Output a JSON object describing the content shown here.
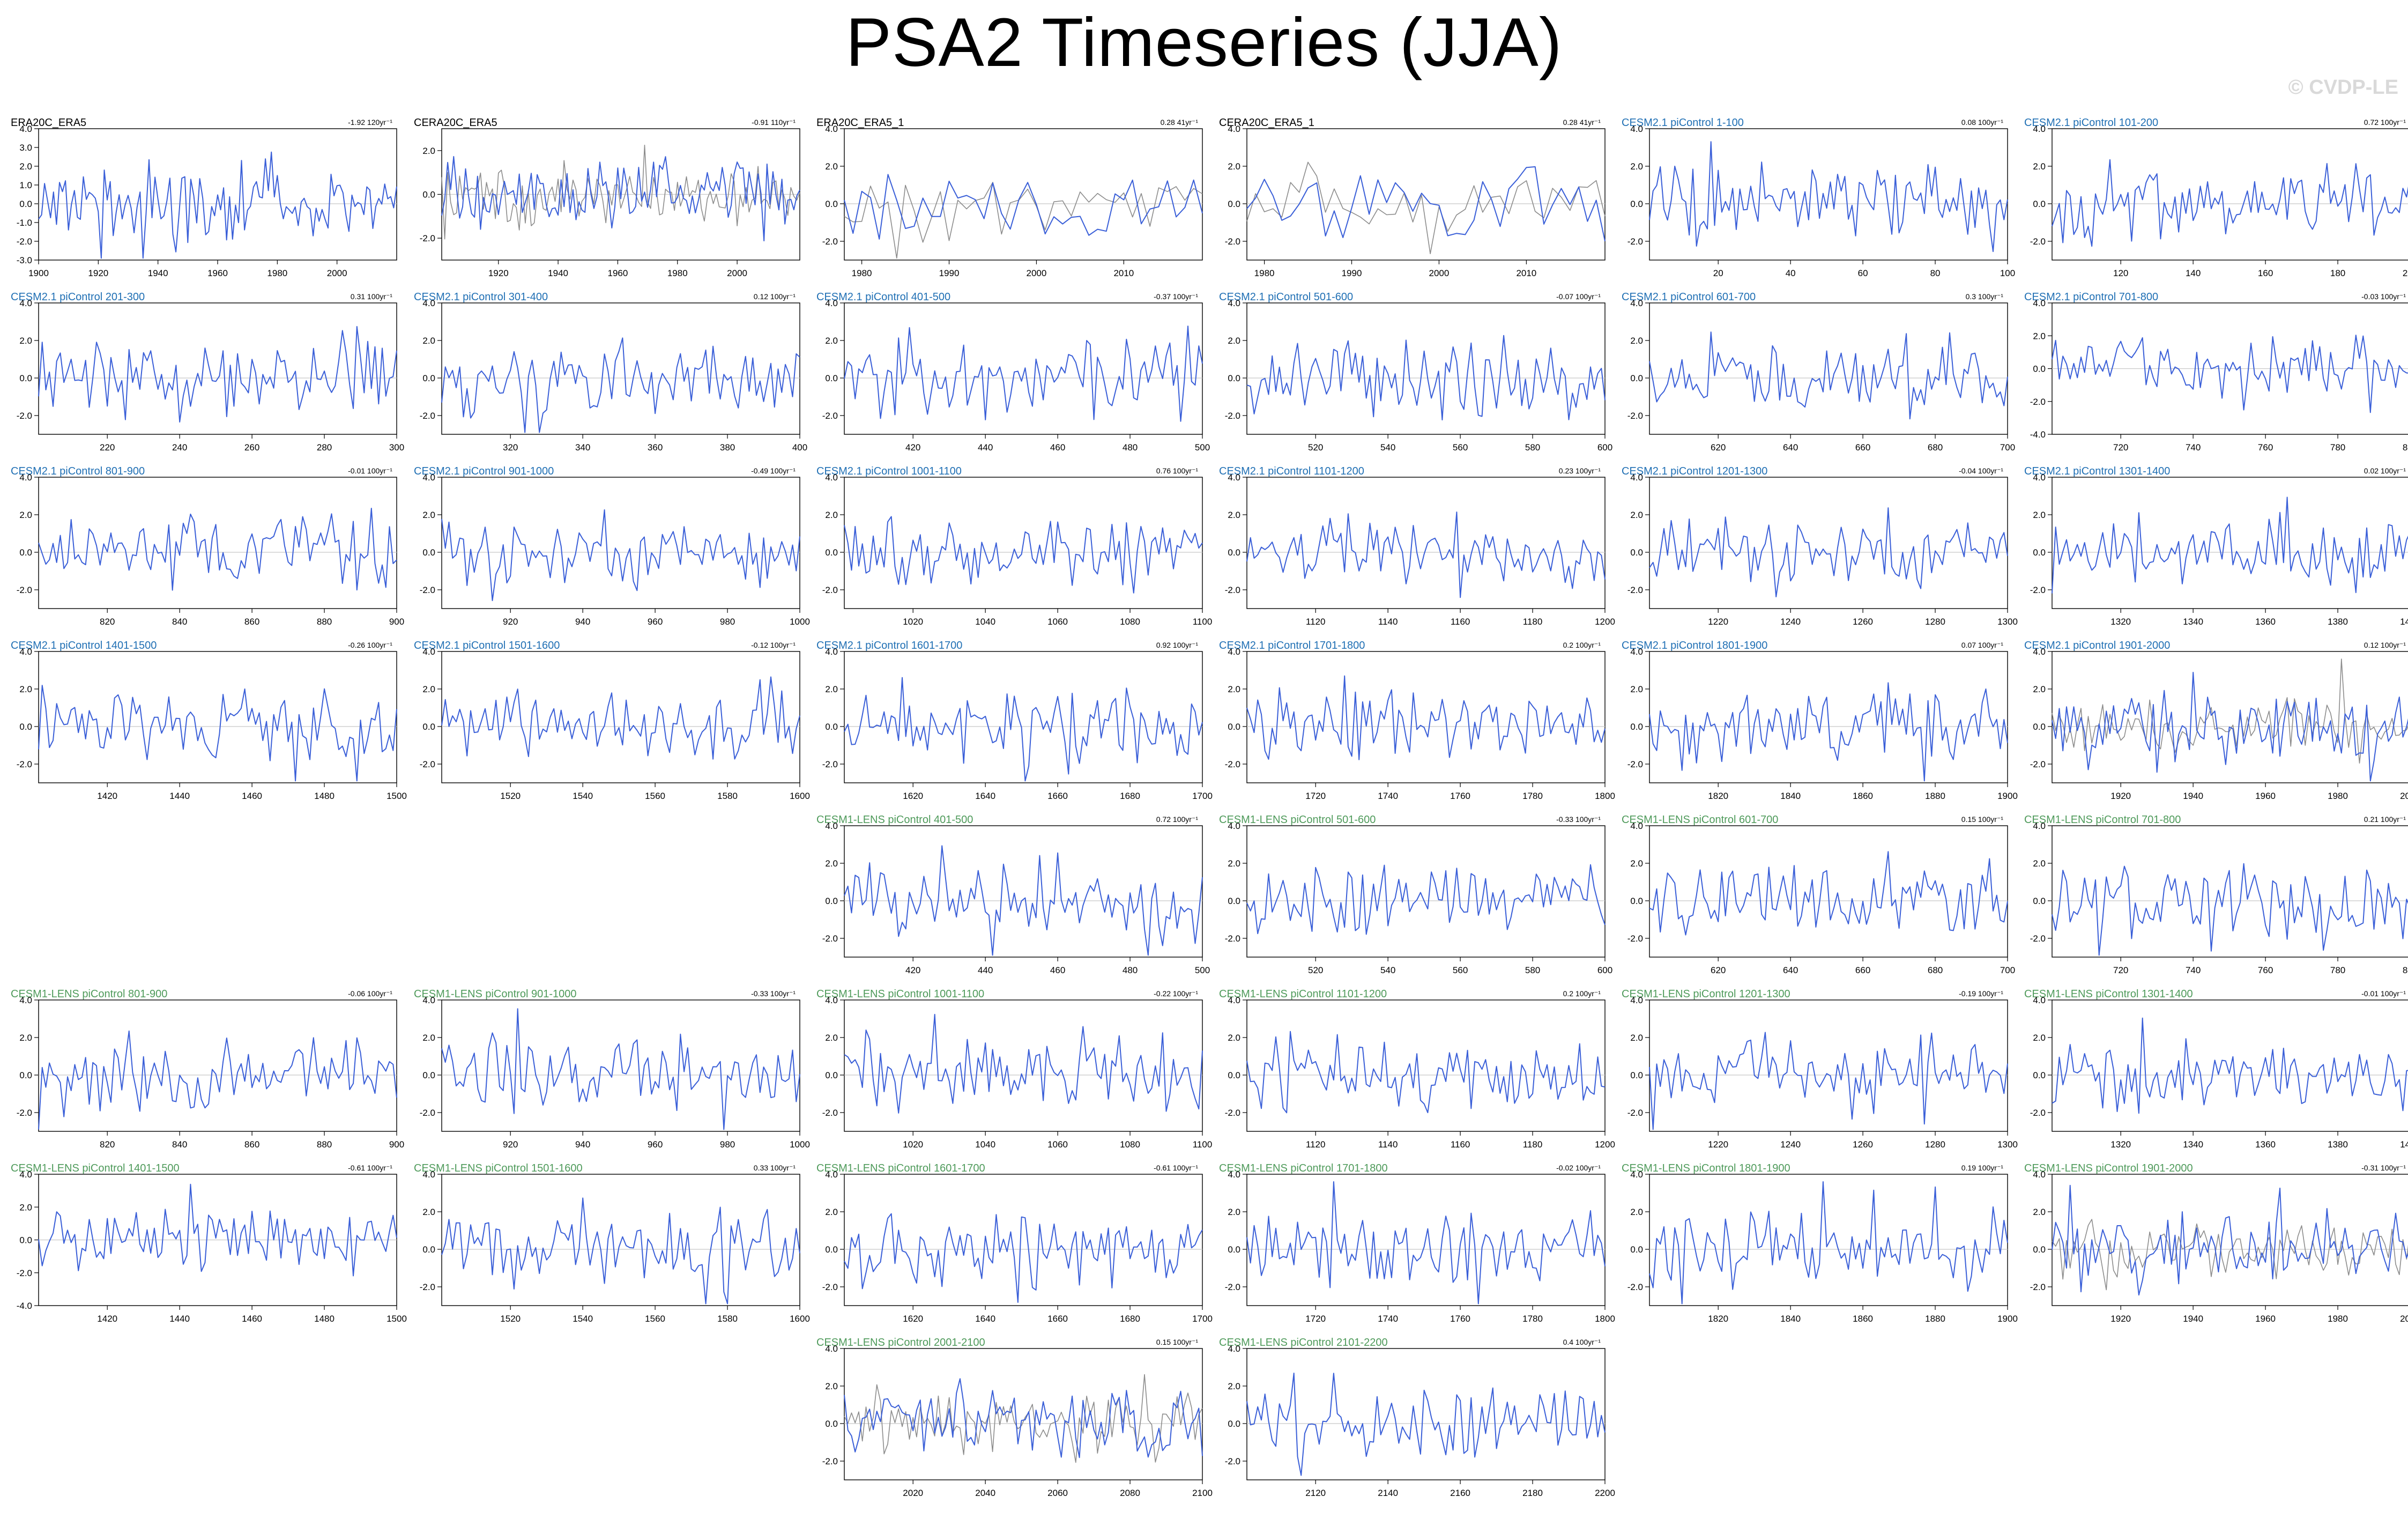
{
  "title": "PSA2 Timeseries (JJA)",
  "watermark": "© CVDP-LE",
  "colors": {
    "obs_title": "#000000",
    "cesm2": "#1f6fb4",
    "lens": "#4e9a5a",
    "series": "#3a5fd8",
    "secondary": "#8c8c8c",
    "zero_line": "#c8c8c8"
  },
  "chart_data": [
    {
      "type": "line",
      "title": "ERA20C_ERA5",
      "trend": "-1.92 120yr⁻¹",
      "color_key": "obs_title",
      "xlim": [
        1900,
        2020
      ],
      "xticks": [
        1900,
        1920,
        1940,
        1960,
        1980,
        2000
      ],
      "ylim": [
        -3,
        4
      ],
      "yticks": [
        -3.0,
        -2.0,
        -1.0,
        0.0,
        1.0,
        2.0,
        3.0,
        4.0
      ],
      "seed": 11,
      "amp": 1.1
    },
    {
      "type": "line",
      "title": "CERA20C_ERA5",
      "trend": "-0.91 110yr⁻¹",
      "color_key": "obs_title",
      "xlim": [
        1901,
        2021
      ],
      "xticks": [
        1920,
        1940,
        1960,
        1980,
        2000
      ],
      "ylim": [
        -3,
        3
      ],
      "yticks": [
        -2.0,
        0.0,
        2.0
      ],
      "seed": 12,
      "amp": 0.9,
      "secondary": true
    },
    {
      "type": "line",
      "title": "ERA20C_ERA5_1",
      "trend": "0.28 41yr⁻¹",
      "color_key": "obs_title",
      "xlim": [
        1978,
        2019
      ],
      "xticks": [
        1980,
        1990,
        2000,
        2010
      ],
      "ylim": [
        -3,
        4
      ],
      "yticks": [
        -2.0,
        0.0,
        2.0,
        4.0
      ],
      "seed": 13,
      "amp": 1.0,
      "secondary": true
    },
    {
      "type": "line",
      "title": "CERA20C_ERA5_1",
      "trend": "0.28 41yr⁻¹",
      "color_key": "obs_title",
      "xlim": [
        1978,
        2019
      ],
      "xticks": [
        1980,
        1990,
        2000,
        2010
      ],
      "ylim": [
        -3,
        4
      ],
      "yticks": [
        -2.0,
        0.0,
        2.0,
        4.0
      ],
      "seed": 14,
      "amp": 1.0,
      "secondary": true
    },
    {
      "type": "line",
      "title": "CESM2.1 piControl 1-100",
      "trend": "0.08 100yr⁻¹",
      "color_key": "cesm2",
      "xlim": [
        1,
        100
      ],
      "xticks": [
        20,
        40,
        60,
        80,
        100
      ],
      "ylim": [
        -3,
        4
      ],
      "yticks": [
        -2.0,
        0.0,
        2.0,
        4.0
      ],
      "seed": 21,
      "amp": 1.0
    },
    {
      "type": "line",
      "title": "CESM2.1 piControl 101-200",
      "trend": "0.72 100yr⁻¹",
      "color_key": "cesm2",
      "xlim": [
        101,
        200
      ],
      "xticks": [
        120,
        140,
        160,
        180,
        200
      ],
      "ylim": [
        -3,
        4
      ],
      "yticks": [
        -2.0,
        0.0,
        2.0,
        4.0
      ],
      "seed": 22,
      "amp": 1.0
    },
    {
      "type": "line",
      "title": "CESM2.1 piControl 201-300",
      "trend": "0.31 100yr⁻¹",
      "color_key": "cesm2",
      "xlim": [
        201,
        300
      ],
      "xticks": [
        220,
        240,
        260,
        280,
        300
      ],
      "ylim": [
        -3,
        4
      ],
      "yticks": [
        -2.0,
        0.0,
        2.0,
        4.0
      ],
      "seed": 31,
      "amp": 1.0
    },
    {
      "type": "line",
      "title": "CESM2.1 piControl 301-400",
      "trend": "0.12 100yr⁻¹",
      "color_key": "cesm2",
      "xlim": [
        301,
        400
      ],
      "xticks": [
        320,
        340,
        360,
        380,
        400
      ],
      "ylim": [
        -3,
        4
      ],
      "yticks": [
        -2.0,
        0.0,
        2.0,
        4.0
      ],
      "seed": 32,
      "amp": 1.0
    },
    {
      "type": "line",
      "title": "CESM2.1 piControl 401-500",
      "trend": "-0.37 100yr⁻¹",
      "color_key": "cesm2",
      "xlim": [
        401,
        500
      ],
      "xticks": [
        420,
        440,
        460,
        480,
        500
      ],
      "ylim": [
        -3,
        4
      ],
      "yticks": [
        -2.0,
        0.0,
        2.0,
        4.0
      ],
      "seed": 33,
      "amp": 1.0
    },
    {
      "type": "line",
      "title": "CESM2.1 piControl 501-600",
      "trend": "-0.07 100yr⁻¹",
      "color_key": "cesm2",
      "xlim": [
        501,
        600
      ],
      "xticks": [
        520,
        540,
        560,
        580,
        600
      ],
      "ylim": [
        -3,
        4
      ],
      "yticks": [
        -2.0,
        0.0,
        2.0,
        4.0
      ],
      "seed": 34,
      "amp": 1.0
    },
    {
      "type": "line",
      "title": "CESM2.1 piControl 601-700",
      "trend": "0.3 100yr⁻¹",
      "color_key": "cesm2",
      "xlim": [
        601,
        700
      ],
      "xticks": [
        620,
        640,
        660,
        680,
        700
      ],
      "ylim": [
        -3,
        4
      ],
      "yticks": [
        -2.0,
        0.0,
        2.0,
        4.0
      ],
      "seed": 35,
      "amp": 1.0
    },
    {
      "type": "line",
      "title": "CESM2.1 piControl 701-800",
      "trend": "-0.03 100yr⁻¹",
      "color_key": "cesm2",
      "xlim": [
        701,
        800
      ],
      "xticks": [
        720,
        740,
        760,
        780,
        800
      ],
      "ylim": [
        -4,
        4
      ],
      "yticks": [
        -4.0,
        -2.0,
        0.0,
        2.0,
        4.0
      ],
      "seed": 36,
      "amp": 1.0
    },
    {
      "type": "line",
      "title": "CESM2.1 piControl 801-900",
      "trend": "-0.01 100yr⁻¹",
      "color_key": "cesm2",
      "xlim": [
        801,
        900
      ],
      "xticks": [
        820,
        840,
        860,
        880,
        900
      ],
      "ylim": [
        -3,
        4
      ],
      "yticks": [
        -2.0,
        0.0,
        2.0,
        4.0
      ],
      "seed": 41,
      "amp": 1.0
    },
    {
      "type": "line",
      "title": "CESM2.1 piControl 901-1000",
      "trend": "-0.49 100yr⁻¹",
      "color_key": "cesm2",
      "xlim": [
        901,
        1000
      ],
      "xticks": [
        920,
        940,
        960,
        980,
        1000
      ],
      "ylim": [
        -3,
        4
      ],
      "yticks": [
        -2.0,
        0.0,
        2.0,
        4.0
      ],
      "seed": 42,
      "amp": 1.0
    },
    {
      "type": "line",
      "title": "CESM2.1 piControl 1001-1100",
      "trend": "0.76 100yr⁻¹",
      "color_key": "cesm2",
      "xlim": [
        1001,
        1100
      ],
      "xticks": [
        1020,
        1040,
        1060,
        1080,
        1100
      ],
      "ylim": [
        -3,
        4
      ],
      "yticks": [
        -2.0,
        0.0,
        2.0,
        4.0
      ],
      "seed": 43,
      "amp": 1.0
    },
    {
      "type": "line",
      "title": "CESM2.1 piControl 1101-1200",
      "trend": "0.23 100yr⁻¹",
      "color_key": "cesm2",
      "xlim": [
        1101,
        1200
      ],
      "xticks": [
        1120,
        1140,
        1160,
        1180,
        1200
      ],
      "ylim": [
        -3,
        4
      ],
      "yticks": [
        -2.0,
        0.0,
        2.0,
        4.0
      ],
      "seed": 44,
      "amp": 1.0
    },
    {
      "type": "line",
      "title": "CESM2.1 piControl 1201-1300",
      "trend": "-0.04 100yr⁻¹",
      "color_key": "cesm2",
      "xlim": [
        1201,
        1300
      ],
      "xticks": [
        1220,
        1240,
        1260,
        1280,
        1300
      ],
      "ylim": [
        -3,
        4
      ],
      "yticks": [
        -2.0,
        0.0,
        2.0,
        4.0
      ],
      "seed": 45,
      "amp": 1.0
    },
    {
      "type": "line",
      "title": "CESM2.1 piControl 1301-1400",
      "trend": "0.02 100yr⁻¹",
      "color_key": "cesm2",
      "xlim": [
        1301,
        1400
      ],
      "xticks": [
        1320,
        1340,
        1360,
        1380,
        1400
      ],
      "ylim": [
        -3,
        4
      ],
      "yticks": [
        -2.0,
        0.0,
        2.0,
        4.0
      ],
      "seed": 46,
      "amp": 1.0
    },
    {
      "type": "line",
      "title": "CESM2.1 piControl 1401-1500",
      "trend": "-0.26 100yr⁻¹",
      "color_key": "cesm2",
      "xlim": [
        1401,
        1500
      ],
      "xticks": [
        1420,
        1440,
        1460,
        1480,
        1500
      ],
      "ylim": [
        -3,
        4
      ],
      "yticks": [
        -2.0,
        0.0,
        2.0,
        4.0
      ],
      "seed": 51,
      "amp": 1.0
    },
    {
      "type": "line",
      "title": "CESM2.1 piControl 1501-1600",
      "trend": "-0.12 100yr⁻¹",
      "color_key": "cesm2",
      "xlim": [
        1501,
        1600
      ],
      "xticks": [
        1520,
        1540,
        1560,
        1580,
        1600
      ],
      "ylim": [
        -3,
        4
      ],
      "yticks": [
        -2.0,
        0.0,
        2.0,
        4.0
      ],
      "seed": 52,
      "amp": 1.0
    },
    {
      "type": "line",
      "title": "CESM2.1 piControl 1601-1700",
      "trend": "0.92 100yr⁻¹",
      "color_key": "cesm2",
      "xlim": [
        1601,
        1700
      ],
      "xticks": [
        1620,
        1640,
        1660,
        1680,
        1700
      ],
      "ylim": [
        -3,
        4
      ],
      "yticks": [
        -2.0,
        0.0,
        2.0,
        4.0
      ],
      "seed": 53,
      "amp": 1.0
    },
    {
      "type": "line",
      "title": "CESM2.1 piControl 1701-1800",
      "trend": "0.2 100yr⁻¹",
      "color_key": "cesm2",
      "xlim": [
        1701,
        1800
      ],
      "xticks": [
        1720,
        1740,
        1760,
        1780,
        1800
      ],
      "ylim": [
        -3,
        4
      ],
      "yticks": [
        -2.0,
        0.0,
        2.0,
        4.0
      ],
      "seed": 54,
      "amp": 1.0
    },
    {
      "type": "line",
      "title": "CESM2.1 piControl 1801-1900",
      "trend": "0.07 100yr⁻¹",
      "color_key": "cesm2",
      "xlim": [
        1801,
        1900
      ],
      "xticks": [
        1820,
        1840,
        1860,
        1880,
        1900
      ],
      "ylim": [
        -3,
        4
      ],
      "yticks": [
        -2.0,
        0.0,
        2.0,
        4.0
      ],
      "seed": 55,
      "amp": 1.0
    },
    {
      "type": "line",
      "title": "CESM2.1 piControl 1901-2000",
      "trend": "0.12 100yr⁻¹",
      "color_key": "cesm2",
      "xlim": [
        1901,
        2000
      ],
      "xticks": [
        1920,
        1940,
        1960,
        1980,
        2000
      ],
      "ylim": [
        -3,
        4
      ],
      "yticks": [
        -2.0,
        0.0,
        2.0,
        4.0
      ],
      "seed": 56,
      "amp": 1.0,
      "secondary": true
    },
    {
      "type": "line",
      "title": "CESM1-LENS piControl 401-500",
      "trend": "0.72 100yr⁻¹",
      "color_key": "lens",
      "xlim": [
        401,
        500
      ],
      "xticks": [
        420,
        440,
        460,
        480,
        500
      ],
      "ylim": [
        -3,
        4
      ],
      "yticks": [
        -2.0,
        0.0,
        2.0,
        4.0
      ],
      "seed": 61,
      "amp": 1.0
    },
    {
      "type": "line",
      "title": "CESM1-LENS piControl 501-600",
      "trend": "-0.33 100yr⁻¹",
      "color_key": "lens",
      "xlim": [
        501,
        600
      ],
      "xticks": [
        520,
        540,
        560,
        580,
        600
      ],
      "ylim": [
        -3,
        4
      ],
      "yticks": [
        -2.0,
        0.0,
        2.0,
        4.0
      ],
      "seed": 62,
      "amp": 1.0
    },
    {
      "type": "line",
      "title": "CESM1-LENS piControl 601-700",
      "trend": "0.15 100yr⁻¹",
      "color_key": "lens",
      "xlim": [
        601,
        700
      ],
      "xticks": [
        620,
        640,
        660,
        680,
        700
      ],
      "ylim": [
        -3,
        4
      ],
      "yticks": [
        -2.0,
        0.0,
        2.0,
        4.0
      ],
      "seed": 63,
      "amp": 1.0
    },
    {
      "type": "line",
      "title": "CESM1-LENS piControl 701-800",
      "trend": "0.21 100yr⁻¹",
      "color_key": "lens",
      "xlim": [
        701,
        800
      ],
      "xticks": [
        720,
        740,
        760,
        780,
        800
      ],
      "ylim": [
        -3,
        4
      ],
      "yticks": [
        -2.0,
        0.0,
        2.0,
        4.0
      ],
      "seed": 64,
      "amp": 1.0
    },
    {
      "type": "line",
      "title": "CESM1-LENS piControl 801-900",
      "trend": "-0.06 100yr⁻¹",
      "color_key": "lens",
      "xlim": [
        801,
        900
      ],
      "xticks": [
        820,
        840,
        860,
        880,
        900
      ],
      "ylim": [
        -3,
        4
      ],
      "yticks": [
        -2.0,
        0.0,
        2.0,
        4.0
      ],
      "seed": 71,
      "amp": 1.0
    },
    {
      "type": "line",
      "title": "CESM1-LENS piControl 901-1000",
      "trend": "-0.33 100yr⁻¹",
      "color_key": "lens",
      "xlim": [
        901,
        1000
      ],
      "xticks": [
        920,
        940,
        960,
        980,
        1000
      ],
      "ylim": [
        -3,
        4
      ],
      "yticks": [
        -2.0,
        0.0,
        2.0,
        4.0
      ],
      "seed": 72,
      "amp": 1.0
    },
    {
      "type": "line",
      "title": "CESM1-LENS piControl 1001-1100",
      "trend": "-0.22 100yr⁻¹",
      "color_key": "lens",
      "xlim": [
        1001,
        1100
      ],
      "xticks": [
        1020,
        1040,
        1060,
        1080,
        1100
      ],
      "ylim": [
        -3,
        4
      ],
      "yticks": [
        -2.0,
        0.0,
        2.0,
        4.0
      ],
      "seed": 73,
      "amp": 1.0
    },
    {
      "type": "line",
      "title": "CESM1-LENS piControl 1101-1200",
      "trend": "0.2 100yr⁻¹",
      "color_key": "lens",
      "xlim": [
        1101,
        1200
      ],
      "xticks": [
        1120,
        1140,
        1160,
        1180,
        1200
      ],
      "ylim": [
        -3,
        4
      ],
      "yticks": [
        -2.0,
        0.0,
        2.0,
        4.0
      ],
      "seed": 74,
      "amp": 1.0
    },
    {
      "type": "line",
      "title": "CESM1-LENS piControl 1201-1300",
      "trend": "-0.19 100yr⁻¹",
      "color_key": "lens",
      "xlim": [
        1201,
        1300
      ],
      "xticks": [
        1220,
        1240,
        1260,
        1280,
        1300
      ],
      "ylim": [
        -3,
        4
      ],
      "yticks": [
        -2.0,
        0.0,
        2.0,
        4.0
      ],
      "seed": 75,
      "amp": 1.0
    },
    {
      "type": "line",
      "title": "CESM1-LENS piControl 1301-1400",
      "trend": "-0.01 100yr⁻¹",
      "color_key": "lens",
      "xlim": [
        1301,
        1400
      ],
      "xticks": [
        1320,
        1340,
        1360,
        1380,
        1400
      ],
      "ylim": [
        -3,
        4
      ],
      "yticks": [
        -2.0,
        0.0,
        2.0,
        4.0
      ],
      "seed": 76,
      "amp": 1.0
    },
    {
      "type": "line",
      "title": "CESM1-LENS piControl 1401-1500",
      "trend": "-0.61 100yr⁻¹",
      "color_key": "lens",
      "xlim": [
        1401,
        1500
      ],
      "xticks": [
        1420,
        1440,
        1460,
        1480,
        1500
      ],
      "ylim": [
        -4,
        4
      ],
      "yticks": [
        -4.0,
        -2.0,
        0.0,
        2.0,
        4.0
      ],
      "seed": 81,
      "amp": 1.0
    },
    {
      "type": "line",
      "title": "CESM1-LENS piControl 1501-1600",
      "trend": "0.33 100yr⁻¹",
      "color_key": "lens",
      "xlim": [
        1501,
        1600
      ],
      "xticks": [
        1520,
        1540,
        1560,
        1580,
        1600
      ],
      "ylim": [
        -3,
        4
      ],
      "yticks": [
        -2.0,
        0.0,
        2.0,
        4.0
      ],
      "seed": 82,
      "amp": 1.0
    },
    {
      "type": "line",
      "title": "CESM1-LENS piControl 1601-1700",
      "trend": "-0.61 100yr⁻¹",
      "color_key": "lens",
      "xlim": [
        1601,
        1700
      ],
      "xticks": [
        1620,
        1640,
        1660,
        1680,
        1700
      ],
      "ylim": [
        -3,
        4
      ],
      "yticks": [
        -2.0,
        0.0,
        2.0,
        4.0
      ],
      "seed": 83,
      "amp": 1.0
    },
    {
      "type": "line",
      "title": "CESM1-LENS piControl 1701-1800",
      "trend": "-0.02 100yr⁻¹",
      "color_key": "lens",
      "xlim": [
        1701,
        1800
      ],
      "xticks": [
        1720,
        1740,
        1760,
        1780,
        1800
      ],
      "ylim": [
        -3,
        4
      ],
      "yticks": [
        -2.0,
        0.0,
        2.0,
        4.0
      ],
      "seed": 84,
      "amp": 1.0
    },
    {
      "type": "line",
      "title": "CESM1-LENS piControl 1801-1900",
      "trend": "0.19 100yr⁻¹",
      "color_key": "lens",
      "xlim": [
        1801,
        1900
      ],
      "xticks": [
        1820,
        1840,
        1860,
        1880,
        1900
      ],
      "ylim": [
        -3,
        4
      ],
      "yticks": [
        -2.0,
        0.0,
        2.0,
        4.0
      ],
      "seed": 85,
      "amp": 1.0
    },
    {
      "type": "line",
      "title": "CESM1-LENS piControl 1901-2000",
      "trend": "-0.31 100yr⁻¹",
      "color_key": "lens",
      "xlim": [
        1901,
        2000
      ],
      "xticks": [
        1920,
        1940,
        1960,
        1980,
        2000
      ],
      "ylim": [
        -3,
        4
      ],
      "yticks": [
        -2.0,
        0.0,
        2.0,
        4.0
      ],
      "seed": 86,
      "amp": 1.0,
      "secondary": true
    },
    {
      "type": "line",
      "title": "CESM1-LENS piControl 2001-2100",
      "trend": "0.15 100yr⁻¹",
      "color_key": "lens",
      "xlim": [
        2001,
        2100
      ],
      "xticks": [
        2020,
        2040,
        2060,
        2080,
        2100
      ],
      "ylim": [
        -3,
        4
      ],
      "yticks": [
        -2.0,
        0.0,
        2.0,
        4.0
      ],
      "seed": 91,
      "amp": 1.0,
      "secondary": true
    },
    {
      "type": "line",
      "title": "CESM1-LENS piControl 2101-2200",
      "trend": "0.4 100yr⁻¹",
      "color_key": "lens",
      "xlim": [
        2101,
        2200
      ],
      "xticks": [
        2120,
        2140,
        2160,
        2180,
        2200
      ],
      "ylim": [
        -3,
        4
      ],
      "yticks": [
        -2.0,
        0.0,
        2.0,
        4.0
      ],
      "seed": 92,
      "amp": 1.0
    }
  ]
}
